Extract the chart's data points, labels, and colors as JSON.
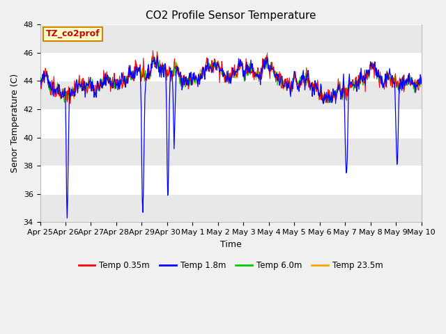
{
  "title": "CO2 Profile Sensor Temperature",
  "ylabel": "Senor Temperature (C)",
  "xlabel": "Time",
  "ylim": [
    34,
    48
  ],
  "yticks": [
    34,
    36,
    38,
    40,
    42,
    44,
    46,
    48
  ],
  "line_colors": {
    "red": "#FF0000",
    "blue": "#0000FF",
    "green": "#00CC00",
    "orange": "#FFA500"
  },
  "legend_entries": [
    "Temp 0.35m",
    "Temp 1.8m",
    "Temp 6.0m",
    "Temp 23.5m"
  ],
  "legend_colors": [
    "#FF0000",
    "#0000FF",
    "#00CC00",
    "#FFA500"
  ],
  "bg_color": "#F0F0F0",
  "plot_bg": "#FFFFFF",
  "band_color": "#E8E8E8",
  "annotation_bg": "#FFFFCC",
  "annotation_border": "#CC8800",
  "annotation_text_color": "#CC0000",
  "annotation_text": "TZ_co2prof",
  "title_fontsize": 11,
  "axis_fontsize": 9,
  "tick_fontsize": 8
}
